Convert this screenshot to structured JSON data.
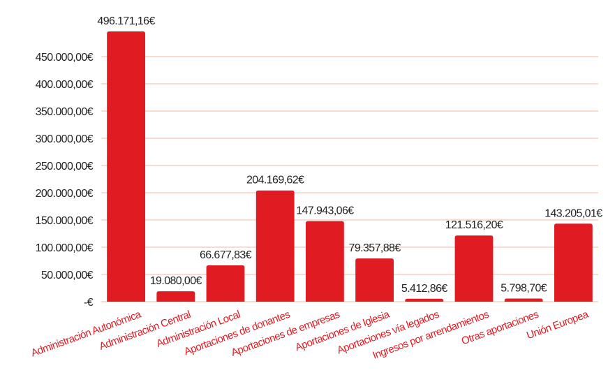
{
  "chart_data": {
    "type": "bar",
    "categories": [
      "Administración Autonómica",
      "Administración Central",
      "Administración Local",
      "Aportaciones de donantes",
      "Aportaciones de empresas",
      "Aportaciones de Iglesia",
      "Aportaciones vía legados",
      "Ingresos por arrendamientos",
      "Otras aportaciones",
      "Unión Europea"
    ],
    "values": [
      496171.16,
      19080.0,
      66677.83,
      204169.62,
      147943.06,
      79357.88,
      5412.86,
      121516.2,
      5798.7,
      143205.01
    ],
    "value_labels": [
      "496.171,16€",
      "19.080,00€",
      "66.677,83€",
      "204.169,62€",
      "147.943,06€",
      "79.357,88€",
      "5.412,86€",
      "121.516,20€",
      "5.798,70€",
      "143.205,01€"
    ],
    "color": "#e01b22",
    "ylim": [
      0,
      500000
    ],
    "yticks": [
      {
        "value": 0,
        "label": "-€"
      },
      {
        "value": 50000,
        "label": "50.000,00€"
      },
      {
        "value": 100000,
        "label": "100.000,00€"
      },
      {
        "value": 150000,
        "label": "150.000,00€"
      },
      {
        "value": 200000,
        "label": "200.000,00€"
      },
      {
        "value": 250000,
        "label": "250.000,00€"
      },
      {
        "value": 300000,
        "label": "300.000,00€"
      },
      {
        "value": 350000,
        "label": "350.000,00€"
      },
      {
        "value": 400000,
        "label": "400.000,00€"
      },
      {
        "value": 450000,
        "label": "450.000,00€"
      }
    ],
    "grid": true
  }
}
